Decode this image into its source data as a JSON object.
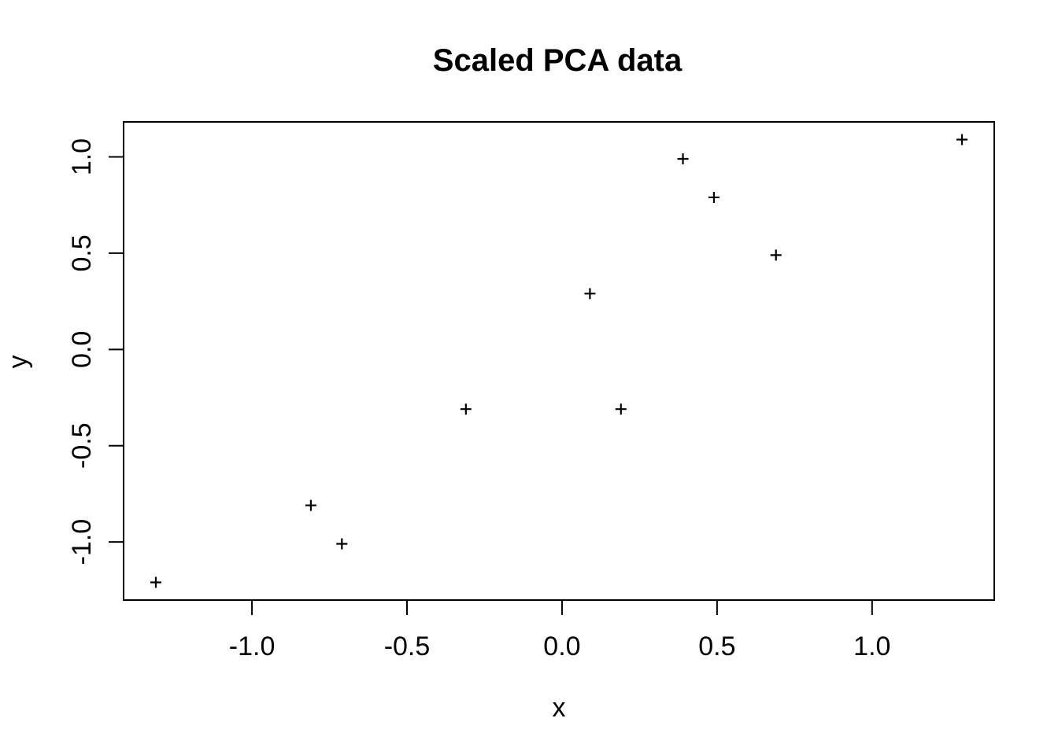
{
  "colors": {
    "foreground": "#000000",
    "background": "#ffffff"
  },
  "chart_data": {
    "type": "scatter",
    "title": "Scaled PCA data",
    "xlabel": "x",
    "ylabel": "y",
    "xlim": [
      -1.414,
      1.394
    ],
    "ylim": [
      -1.302,
      1.182
    ],
    "grid": false,
    "legend": "none",
    "marker": "plus",
    "marker_color": "#000000",
    "x_ticks": [
      -1.0,
      -0.5,
      0.0,
      0.5,
      1.0
    ],
    "x_tick_labels": [
      "-1.0",
      "-0.5",
      "0.0",
      "0.5",
      "1.0"
    ],
    "y_ticks": [
      -1.0,
      -0.5,
      0.0,
      0.5,
      1.0
    ],
    "y_tick_labels": [
      "-1.0",
      "-0.5",
      "0.0",
      "0.5",
      "1.0"
    ],
    "points": [
      {
        "x": 0.69,
        "y": 0.49
      },
      {
        "x": -1.31,
        "y": -1.21
      },
      {
        "x": 0.39,
        "y": 0.99
      },
      {
        "x": 0.09,
        "y": 0.29
      },
      {
        "x": 1.29,
        "y": 1.09
      },
      {
        "x": 0.49,
        "y": 0.79
      },
      {
        "x": 0.19,
        "y": -0.31
      },
      {
        "x": -0.81,
        "y": -0.81
      },
      {
        "x": -0.31,
        "y": -0.31
      },
      {
        "x": -0.71,
        "y": -1.01
      }
    ]
  }
}
